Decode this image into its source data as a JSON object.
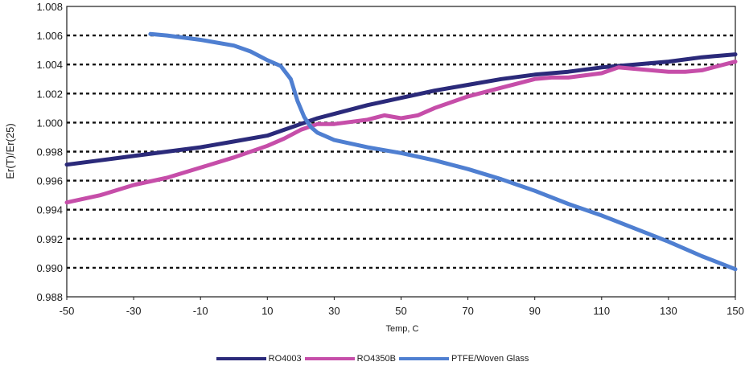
{
  "chart_data": {
    "type": "line",
    "title": "",
    "xlabel": "Temp, C",
    "ylabel": "Er(T)/Er(25)",
    "xlim": [
      -50,
      150
    ],
    "ylim": [
      0.988,
      1.008
    ],
    "x_ticks": [
      "-50",
      "-30",
      "-10",
      "10",
      "30",
      "50",
      "70",
      "90",
      "110",
      "130",
      "150"
    ],
    "x_tick_values": [
      -50,
      -30,
      -10,
      10,
      30,
      50,
      70,
      90,
      110,
      130,
      150
    ],
    "y_ticks": [
      "0.988",
      "0.990",
      "0.992",
      "0.994",
      "0.996",
      "0.998",
      "1.000",
      "1.002",
      "1.004",
      "1.006",
      "1.008"
    ],
    "y_tick_values": [
      0.988,
      0.99,
      0.992,
      0.994,
      0.996,
      0.998,
      1.0,
      1.002,
      1.004,
      1.006,
      1.008
    ],
    "grid": "horizontal dotted",
    "legend_position": "bottom",
    "series": [
      {
        "name": "RO4003",
        "color": "#2b2a7a",
        "x": [
          -50,
          -40,
          -30,
          -20,
          -10,
          0,
          10,
          15,
          20,
          25,
          30,
          40,
          50,
          60,
          70,
          80,
          90,
          100,
          110,
          120,
          130,
          140,
          150
        ],
        "y": [
          0.9971,
          0.9974,
          0.9977,
          0.998,
          0.9983,
          0.9987,
          0.9991,
          0.9995,
          0.9999,
          1.0003,
          1.0006,
          1.0012,
          1.0017,
          1.0022,
          1.0026,
          1.003,
          1.0033,
          1.0035,
          1.0038,
          1.004,
          1.0042,
          1.0045,
          1.0047
        ]
      },
      {
        "name": "RO4350B",
        "color": "#c64ea9",
        "x": [
          -50,
          -40,
          -30,
          -20,
          -10,
          0,
          10,
          15,
          20,
          25,
          30,
          40,
          45,
          50,
          55,
          60,
          70,
          80,
          90,
          95,
          100,
          110,
          115,
          120,
          130,
          135,
          140,
          150
        ],
        "y": [
          0.9945,
          0.995,
          0.9957,
          0.9962,
          0.9969,
          0.9976,
          0.9984,
          0.9989,
          0.9995,
          0.9999,
          0.9999,
          1.0002,
          1.0005,
          1.0003,
          1.0005,
          1.001,
          1.0018,
          1.0024,
          1.003,
          1.0031,
          1.0031,
          1.0034,
          1.0038,
          1.0037,
          1.0035,
          1.0035,
          1.0036,
          1.0042
        ]
      },
      {
        "name": "PTFE/Woven Glass",
        "color": "#4f7fd1",
        "x": [
          -25,
          -20,
          -10,
          0,
          5,
          10,
          14,
          17,
          19,
          21,
          23,
          25,
          27,
          30,
          40,
          50,
          60,
          70,
          80,
          90,
          100,
          110,
          120,
          130,
          140,
          150
        ],
        "y": [
          1.0061,
          1.006,
          1.0057,
          1.0053,
          1.0049,
          1.0043,
          1.0039,
          1.003,
          1.0015,
          1.0004,
          0.9997,
          0.9993,
          0.9991,
          0.9988,
          0.9983,
          0.9979,
          0.9974,
          0.9968,
          0.9961,
          0.9953,
          0.9944,
          0.9936,
          0.9927,
          0.9918,
          0.9908,
          0.9899
        ]
      }
    ]
  }
}
